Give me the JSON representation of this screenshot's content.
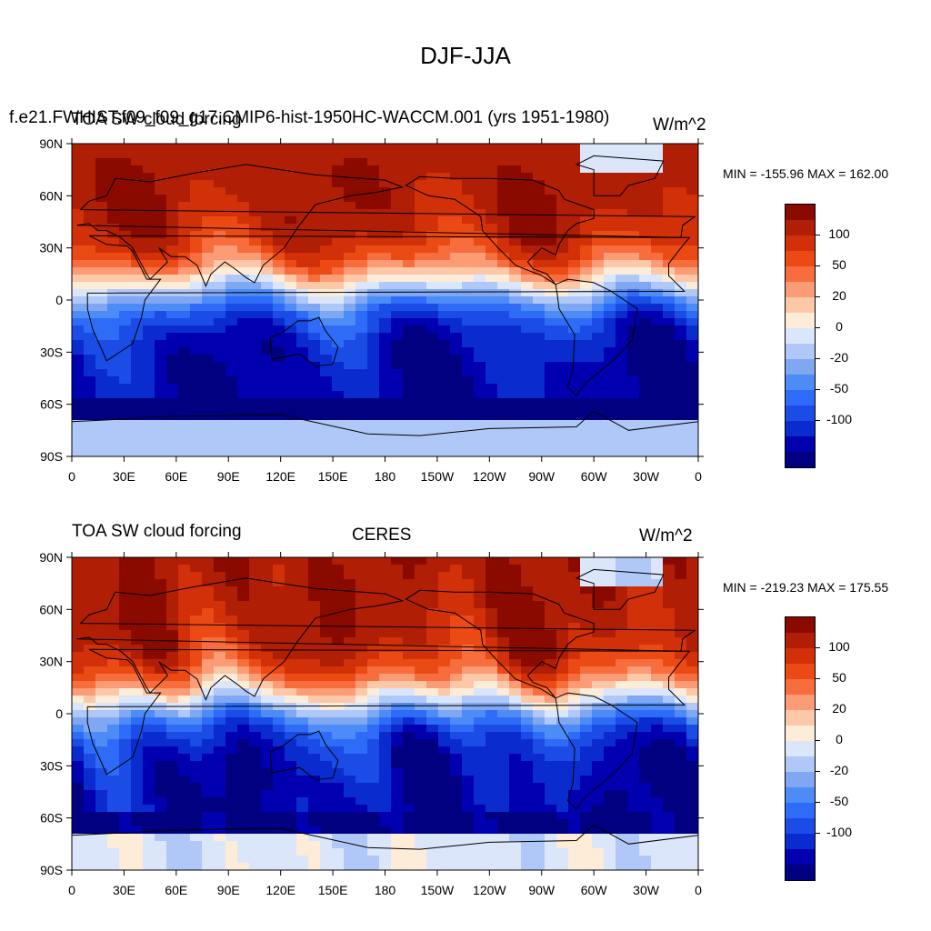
{
  "figure_title": "DJF-JJA",
  "colors": {
    "levels": [
      "#000080",
      "#0000b0",
      "#0a2bcd",
      "#1c4ce6",
      "#2e6cf7",
      "#4d8cf6",
      "#7fa7f2",
      "#b0c8f7",
      "#dbe6fb",
      "#fdecd8",
      "#fcc8a8",
      "#fb9c76",
      "#f76d3d",
      "#ec4a15",
      "#d13008",
      "#b01e05",
      "#8a0a00"
    ],
    "antarctic_gap": "#dbe6fb"
  },
  "panels": [
    {
      "id": "model",
      "left_label": "TOA SW cloud forcing",
      "center_label": "f.e21.FWHIST.f09_f09_g17.CMIP6-hist-1950HC-WACCM.001 (yrs 1951-1980)",
      "right_label": "W/m^2",
      "stats": "MIN = -155.96 MAX = 162.00"
    },
    {
      "id": "obs",
      "left_label": "TOA SW cloud forcing",
      "center_label": "CERES",
      "right_label": "W/m^2",
      "stats": "MIN = -219.23 MAX = 175.55"
    }
  ],
  "lat_labels": [
    "90N",
    "60N",
    "30N",
    "0",
    "30S",
    "60S",
    "90S"
  ],
  "lon_labels": [
    "0",
    "30E",
    "60E",
    "90E",
    "120E",
    "150E",
    "180",
    "150W",
    "120W",
    "90W",
    "60W",
    "30W",
    "0"
  ],
  "colorbar_labels": [
    "100",
    "50",
    "20",
    "0",
    "-20",
    "-50",
    "-100"
  ]
}
